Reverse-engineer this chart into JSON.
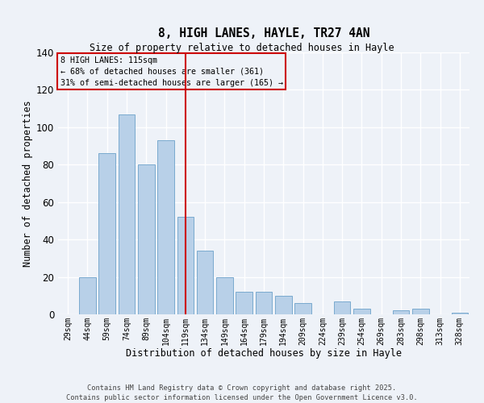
{
  "title": "8, HIGH LANES, HAYLE, TR27 4AN",
  "subtitle": "Size of property relative to detached houses in Hayle",
  "xlabel": "Distribution of detached houses by size in Hayle",
  "ylabel": "Number of detached properties",
  "bar_labels": [
    "29sqm",
    "44sqm",
    "59sqm",
    "74sqm",
    "89sqm",
    "104sqm",
    "119sqm",
    "134sqm",
    "149sqm",
    "164sqm",
    "179sqm",
    "194sqm",
    "209sqm",
    "224sqm",
    "239sqm",
    "254sqm",
    "269sqm",
    "283sqm",
    "298sqm",
    "313sqm",
    "328sqm"
  ],
  "bar_values": [
    0,
    20,
    86,
    107,
    80,
    93,
    52,
    34,
    20,
    12,
    12,
    10,
    6,
    0,
    7,
    3,
    0,
    2,
    3,
    0,
    1
  ],
  "bar_color": "#b8d0e8",
  "bar_edge_color": "#7aaacf",
  "ylim": [
    0,
    140
  ],
  "yticks": [
    0,
    20,
    40,
    60,
    80,
    100,
    120,
    140
  ],
  "vline_x_index": 6,
  "vline_color": "#cc0000",
  "annotation_title": "8 HIGH LANES: 115sqm",
  "annotation_line1": "← 68% of detached houses are smaller (361)",
  "annotation_line2": "31% of semi-detached houses are larger (165) →",
  "annotation_box_color": "#cc0000",
  "background_color": "#eef2f8",
  "grid_color": "#ffffff",
  "footer_line1": "Contains HM Land Registry data © Crown copyright and database right 2025.",
  "footer_line2": "Contains public sector information licensed under the Open Government Licence v3.0."
}
